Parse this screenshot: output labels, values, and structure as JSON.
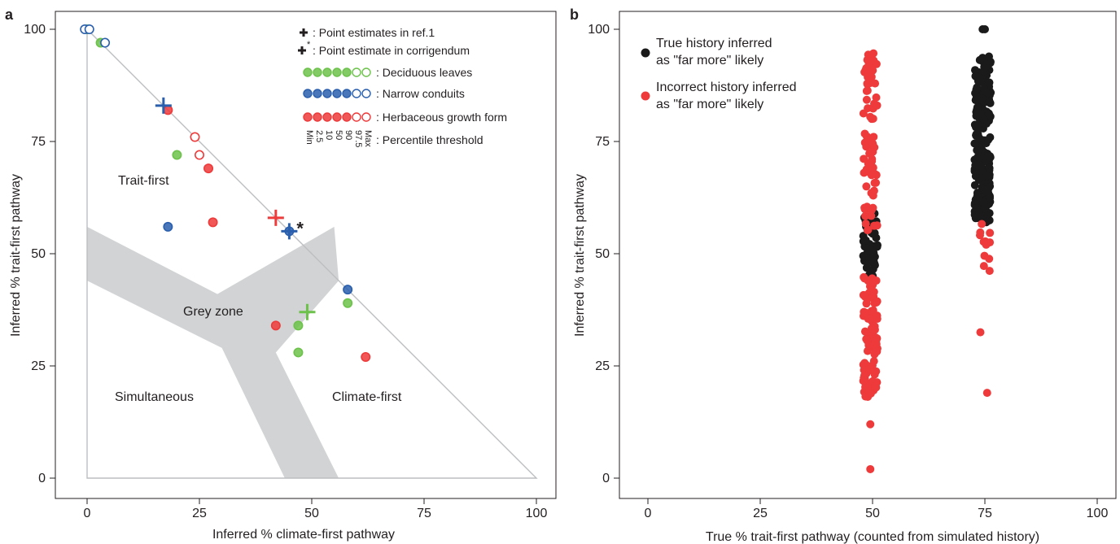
{
  "colors": {
    "green": "#6cc24a",
    "blue": "#2a5fae",
    "red": "#ee3a3a",
    "black": "#1a1a1a",
    "grey_zone": "#d1d3d4",
    "frame": "#bcbec0"
  },
  "chart_data": [
    {
      "panel": "a",
      "type": "scatter",
      "xlabel": "Inferred % climate-first pathway",
      "ylabel": "Inferred % trait-first pathway",
      "xlim": [
        0,
        100
      ],
      "ylim": [
        0,
        100
      ],
      "xticks": [
        "0",
        "25",
        "50",
        "75",
        "100"
      ],
      "yticks": [
        "0",
        "25",
        "50",
        "75",
        "100"
      ],
      "regions": [
        "Trait-first",
        "Grey zone",
        "Simultaneous",
        "Climate-first"
      ],
      "legend": {
        "ref_marker": "+",
        "ref_label": ": Point estimates in ref.1",
        "corr_marker": "+*",
        "corr_label": ": Point estimate in corrigendum",
        "series_labels": [
          ": Deciduous leaves",
          ": Narrow conduits",
          ": Herbaceous growth form"
        ],
        "percentiles": [
          "Min",
          "2.5",
          "10",
          "50",
          "90",
          "97.5",
          "Max"
        ],
        "percentile_label": ": Percentile threshold"
      },
      "series": [
        {
          "name": "Deciduous leaves",
          "color": "green",
          "points": [
            [
              0,
              100
            ],
            [
              3,
              97
            ],
            [
              20,
              72
            ],
            [
              47,
              34
            ],
            [
              47,
              28
            ],
            [
              58,
              39
            ]
          ],
          "filled": [
            true,
            true,
            true,
            true,
            true,
            true
          ],
          "ref_estimate": [
            49,
            37
          ]
        },
        {
          "name": "Narrow conduits",
          "color": "blue",
          "points": [
            [
              -0.5,
              100
            ],
            [
              0.5,
              100
            ],
            [
              18,
              56
            ],
            [
              45,
              55
            ],
            [
              58,
              42
            ],
            [
              4,
              97
            ]
          ],
          "filled": [
            false,
            false,
            true,
            true,
            true,
            false
          ],
          "ref_estimate": [
            17,
            83
          ],
          "corrigendum_estimate": [
            45,
            55
          ]
        },
        {
          "name": "Herbaceous growth form",
          "color": "red",
          "points": [
            [
              18,
              82
            ],
            [
              24,
              76
            ],
            [
              25,
              72
            ],
            [
              27,
              69
            ],
            [
              28,
              57
            ],
            [
              42,
              34
            ],
            [
              62,
              27
            ]
          ],
          "filled": [
            true,
            false,
            false,
            true,
            true,
            true,
            true
          ],
          "ref_estimate": [
            42,
            58
          ]
        }
      ]
    },
    {
      "panel": "b",
      "type": "scatter",
      "xlabel": "True % trait-first pathway (counted from simulated history)",
      "ylabel": "Inferred % trait-first pathway",
      "xlim": [
        0,
        100
      ],
      "ylim": [
        0,
        100
      ],
      "xticks": [
        "0",
        "25",
        "50",
        "75",
        "100"
      ],
      "yticks": [
        "0",
        "25",
        "50",
        "75",
        "100"
      ],
      "legend": [
        {
          "line1": "True history inferred",
          "line2": "as \"far more\" likely",
          "color": "black"
        },
        {
          "line1": "Incorrect history inferred",
          "line2": "as \"far more\" likely",
          "color": "red"
        }
      ],
      "clusters": [
        {
          "name": "True % = 50, correct",
          "color": "black",
          "x_center": 49.5,
          "x_spread": 1.6,
          "y_min": 45,
          "y_max": 59,
          "count": 60
        },
        {
          "name": "True % = 50, incorrect high",
          "color": "red",
          "x_center": 49.5,
          "x_spread": 1.6,
          "y_min": 55,
          "y_max": 95,
          "count": 80
        },
        {
          "name": "True % = 50, incorrect low",
          "color": "red",
          "x_center": 49.5,
          "x_spread": 1.6,
          "y_min": 18,
          "y_max": 45,
          "count": 90
        },
        {
          "name": "True % = 75, correct",
          "color": "black",
          "x_center": 74.5,
          "x_spread": 1.8,
          "y_min": 57,
          "y_max": 94,
          "count": 230
        },
        {
          "name": "True % = 75, incorrect",
          "color": "red",
          "x_center": 75,
          "x_spread": 1.2,
          "y_min": 45,
          "y_max": 57,
          "count": 12
        }
      ],
      "outliers": [
        {
          "x": 49.5,
          "y": 12,
          "color": "red"
        },
        {
          "x": 49.5,
          "y": 2,
          "color": "red"
        },
        {
          "x": 74,
          "y": 32.5,
          "color": "red"
        },
        {
          "x": 75.5,
          "y": 19,
          "color": "red"
        },
        {
          "x": 74.5,
          "y": 100,
          "color": "black"
        },
        {
          "x": 75,
          "y": 100,
          "color": "black"
        }
      ]
    }
  ]
}
